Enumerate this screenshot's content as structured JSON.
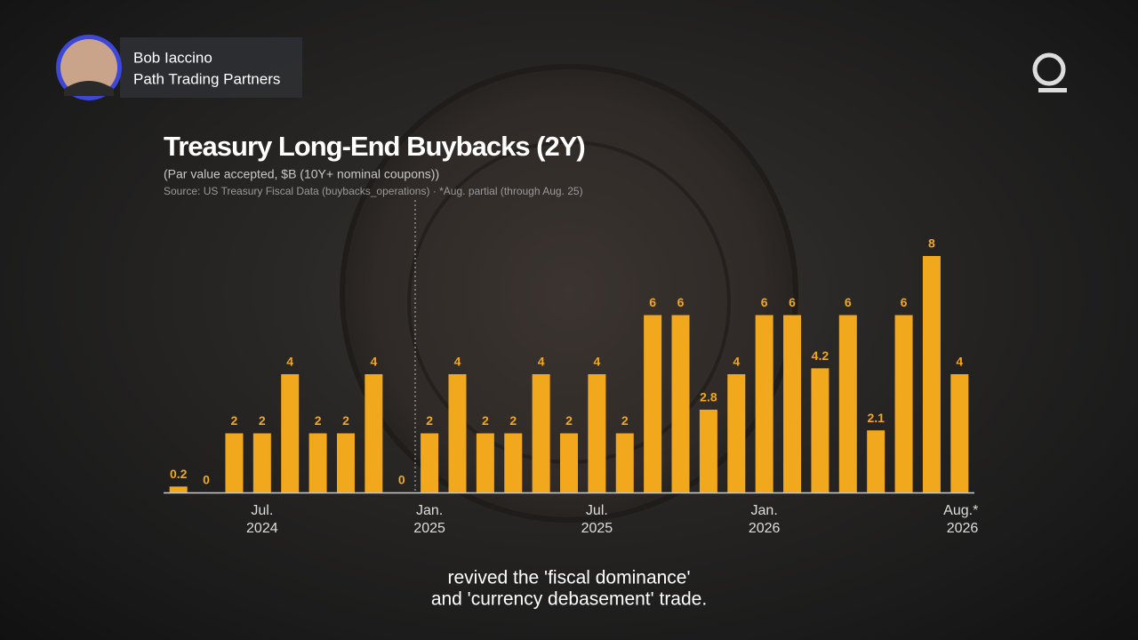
{
  "presenter": {
    "name": "Bob Iaccino",
    "company": "Path Trading Partners"
  },
  "caption": [
    "revived the 'fiscal dominance'",
    "and 'currency debasement' trade."
  ],
  "chart_data": {
    "type": "bar",
    "title": "Treasury Long-End Buybacks (2Y)",
    "subtitle": "(Par value accepted, $B (10Y+ nominal coupons))",
    "source": "Source: US Treasury Fiscal Data (buybacks_operations) · *Aug. partial (through Aug. 25)",
    "categories": [
      null,
      null,
      null,
      "Jul.\n2024",
      null,
      null,
      null,
      null,
      null,
      "Jan.\n2025",
      null,
      null,
      null,
      null,
      null,
      "Jul.\n2025",
      null,
      null,
      null,
      null,
      null,
      "Jan.\n2026",
      null,
      null,
      null,
      null,
      null,
      null,
      "Aug.*\n2026"
    ],
    "values": [
      0.2,
      0,
      2,
      2,
      4,
      2,
      2,
      4,
      0,
      2,
      4,
      2,
      2,
      4,
      2,
      4,
      2,
      6,
      6,
      2.8,
      4,
      6,
      6,
      4.2,
      6,
      2.1,
      6,
      8,
      4
    ],
    "color": "#f2a81d",
    "ylim": [
      0,
      8
    ]
  }
}
